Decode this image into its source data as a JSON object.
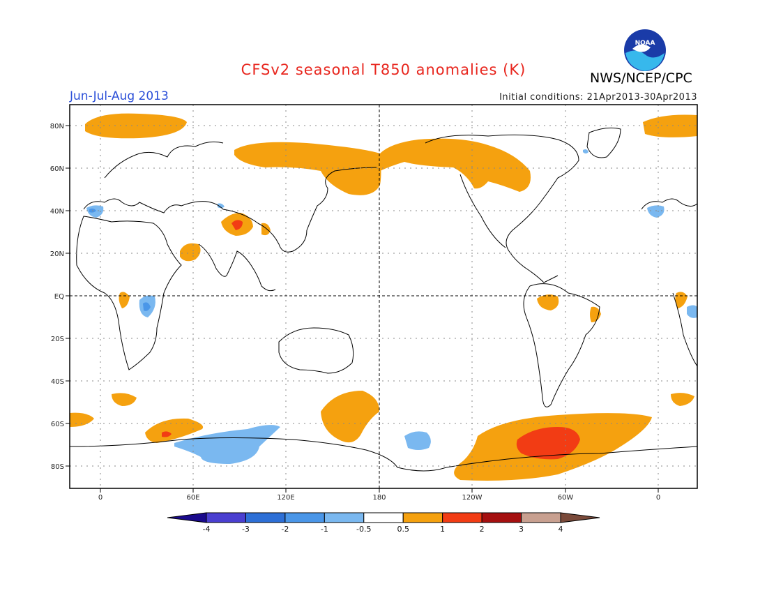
{
  "header": {
    "title": "CFSv2 seasonal T850 anomalies (K)",
    "season": "Jun-Jul-Aug 2013",
    "initial_conditions": "Initial conditions: 21Apr2013-30Apr2013",
    "organization": "NWS/NCEP/CPC",
    "logo_text": "NOAA"
  },
  "map": {
    "lat_labels": [
      "80N",
      "60N",
      "40N",
      "20N",
      "EQ",
      "20S",
      "40S",
      "60S",
      "80S"
    ],
    "lon_labels": [
      "0",
      "60E",
      "120E",
      "180",
      "120W",
      "60W",
      "0"
    ],
    "colors": {
      "land_outline": "#000000",
      "anom_pos_05_1": "#f5a10f",
      "anom_pos_1_2": "#f23c14",
      "anom_neg_05_1": "#7ab8f0",
      "anom_neg_1_2": "#4a96e8"
    }
  },
  "colorbar": {
    "labels": [
      "-4",
      "-3",
      "-2",
      "-1",
      "-0.5",
      "0.5",
      "1",
      "2",
      "3",
      "4"
    ],
    "colors": [
      "#1a0a8c",
      "#4a3fd0",
      "#2d6fd6",
      "#4a96e8",
      "#7ab8f0",
      "#ffffff",
      "#f5a10f",
      "#f23c14",
      "#a51010",
      "#c8a090",
      "#7a4a3a"
    ]
  }
}
